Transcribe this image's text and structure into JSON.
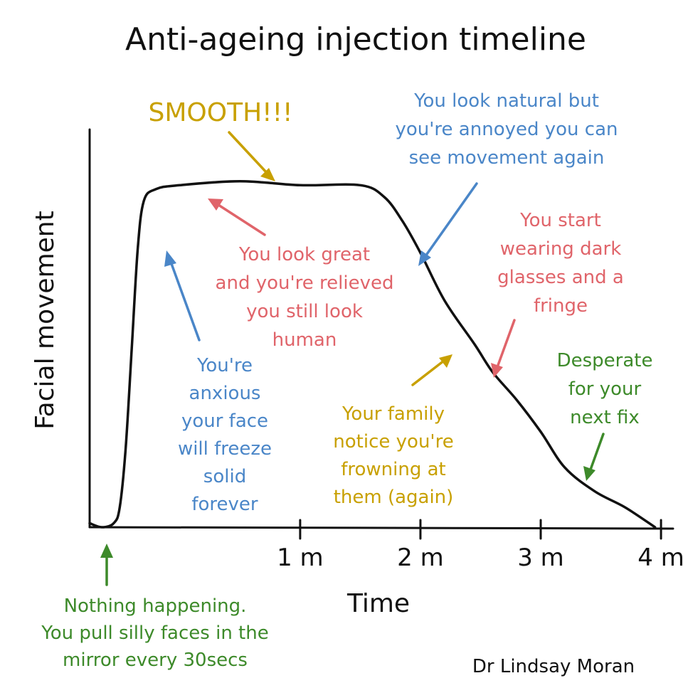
{
  "chart_data": {
    "type": "line",
    "title": "Anti-ageing injection timeline",
    "xlabel": "Time",
    "ylabel": "Facial movement",
    "x_ticks": [
      {
        "value": 1,
        "label": "1 m"
      },
      {
        "value": 2,
        "label": "2 m"
      },
      {
        "value": 3,
        "label": "3 m"
      },
      {
        "value": 4,
        "label": "4 m"
      }
    ],
    "xlim": [
      -0.75,
      4.1
    ],
    "ylim": [
      0,
      1
    ],
    "series": [
      {
        "x": [
          -0.75,
          -0.65,
          -0.55,
          -0.5,
          -0.45,
          -0.4,
          -0.35,
          -0.3,
          -0.2,
          0.0,
          0.5,
          1.0,
          1.5,
          1.7,
          1.85,
          2.0,
          2.2,
          2.45,
          2.6,
          2.8,
          3.0,
          3.2,
          3.45,
          3.7,
          3.95
        ],
        "y": [
          0.01,
          0.0,
          0.01,
          0.05,
          0.2,
          0.45,
          0.7,
          0.82,
          0.85,
          0.86,
          0.87,
          0.86,
          0.86,
          0.83,
          0.77,
          0.69,
          0.57,
          0.46,
          0.39,
          0.32,
          0.24,
          0.15,
          0.09,
          0.05,
          0.0
        ]
      }
    ],
    "grid": false,
    "legend": "none"
  },
  "annotations": [
    {
      "id": "smooth",
      "lines": [
        "SMOOTH!!!"
      ],
      "color": "#c8a000"
    },
    {
      "id": "look-great",
      "lines": [
        "You look great",
        "and you're relieved",
        "you still look",
        "human"
      ],
      "color": "#e0646a"
    },
    {
      "id": "anxious",
      "lines": [
        "You're",
        "anxious",
        "your face",
        "will freeze",
        "solid",
        "forever"
      ],
      "color": "#4a86c8"
    },
    {
      "id": "natural",
      "lines": [
        "You look natural but",
        "you're annoyed you can",
        "see movement again"
      ],
      "color": "#4a86c8"
    },
    {
      "id": "dark-glasses",
      "lines": [
        "You start",
        "wearing dark",
        "glasses and a",
        "fringe"
      ],
      "color": "#e0646a"
    },
    {
      "id": "family",
      "lines": [
        "Your family",
        "notice you're",
        "frowning at",
        "them (again)"
      ],
      "color": "#c8a000"
    },
    {
      "id": "desperate",
      "lines": [
        "Desperate",
        "for your",
        "next fix"
      ],
      "color": "#3d8a2a"
    },
    {
      "id": "nothing",
      "lines": [
        "Nothing happening.",
        "You pull silly faces in the",
        "mirror every 30secs"
      ],
      "color": "#3d8a2a"
    }
  ],
  "credit": "Dr Lindsay Moran"
}
